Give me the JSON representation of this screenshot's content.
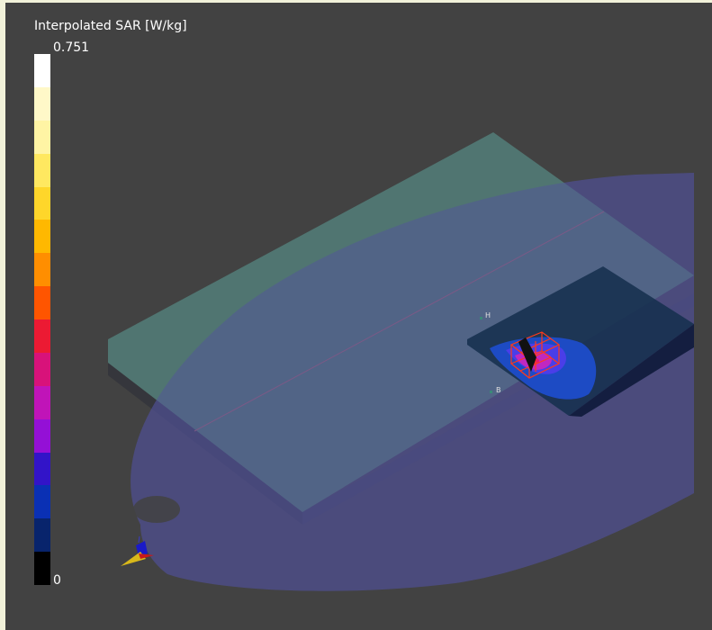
{
  "legend": {
    "title": "Interpolated SAR [W/kg]",
    "max_label": "0.751",
    "min_label": "0",
    "colors": [
      "#ffffff",
      "#fff8c8",
      "#fff4a4",
      "#ffe860",
      "#fed62a",
      "#ffb800",
      "#ff8e00",
      "#ff5500",
      "#ec1a33",
      "#d8127a",
      "#c014b8",
      "#9410d6",
      "#3214c8",
      "#0a30b4",
      "#08246c",
      "#000000"
    ]
  },
  "scene": {
    "probe_labels": {
      "top": "H",
      "bottom": "B"
    },
    "colors": {
      "background": "#424242",
      "phantom": "#4b4a82",
      "phone_top": "#4b6f67",
      "phone_side": "#2e3444",
      "scan_area": "#1c3452",
      "zoom_box": "#ff3a1a"
    }
  }
}
